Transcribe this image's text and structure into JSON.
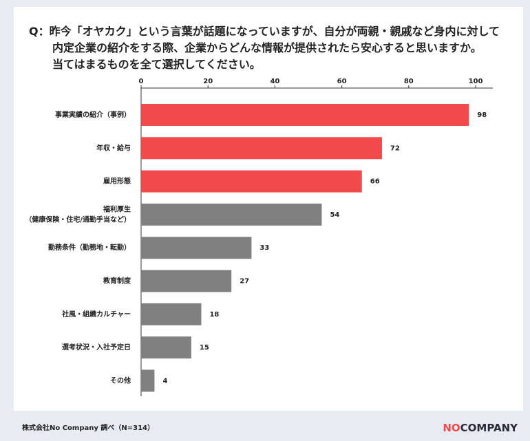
{
  "chart_data": {
    "type": "barh",
    "title": "Q：昨今「オヤカク」という言葉が話題になっていますが、自分が両親・親戚など身内に対して\n内定企業の紹介をする際、企業からどんな情報が提供されたら安心すると思いますか。\n当てはまるものを全て選択してください。",
    "categories": [
      "事業実績の紹介（事例）",
      "年収・給与",
      "雇用形態",
      "福利厚生\n（健康保険・住宅/通勤手当など）",
      "勤務条件（勤務地・転勤）",
      "教育制度",
      "社風・組織カルチャー",
      "選考状況・入社予定日",
      "その他"
    ],
    "values": [
      98,
      72,
      66,
      54,
      33,
      27,
      18,
      15,
      4
    ],
    "colors": [
      "#f24a4a",
      "#f24a4a",
      "#f24a4a",
      "#808080",
      "#808080",
      "#808080",
      "#808080",
      "#808080",
      "#808080"
    ],
    "xlim": [
      0,
      100
    ],
    "xticks": [
      0,
      20,
      40,
      60,
      80,
      100
    ],
    "source": "株式会社No Company 調べ（N=314）",
    "logo": [
      "NO",
      "COMPANY"
    ]
  }
}
